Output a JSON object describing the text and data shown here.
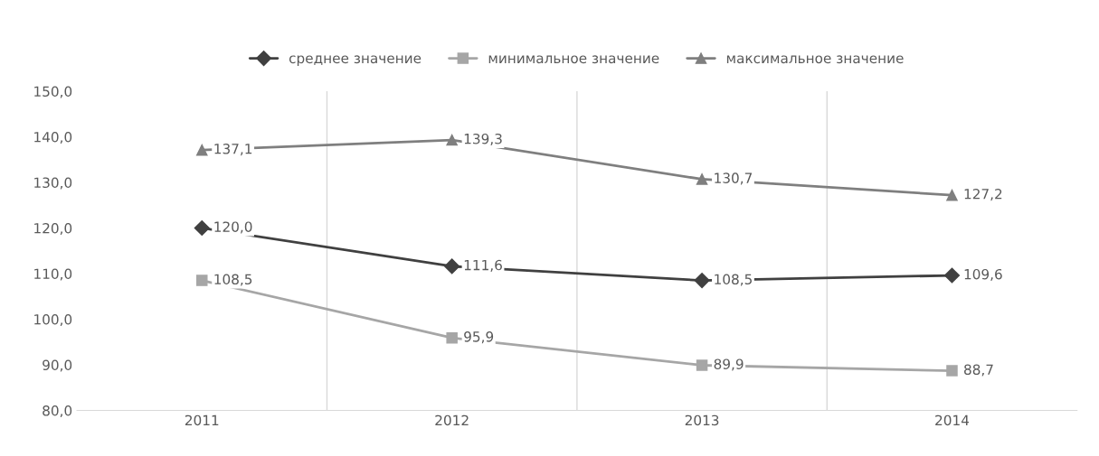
{
  "chart_data": {
    "type": "line",
    "categories": [
      "2011",
      "2012",
      "2013",
      "2014"
    ],
    "series": [
      {
        "name": "среднее значение",
        "color": "#404040",
        "marker": "diamond",
        "values": [
          120.0,
          111.6,
          108.5,
          109.6
        ],
        "value_labels": [
          "120,0",
          "111,6",
          "108,5",
          "109,6"
        ]
      },
      {
        "name": "минимальное значение",
        "color": "#a6a6a6",
        "marker": "square",
        "values": [
          108.5,
          95.9,
          89.9,
          88.7
        ],
        "value_labels": [
          "108,5",
          "95,9",
          "89,9",
          "88,7"
        ]
      },
      {
        "name": "максимальное значение",
        "color": "#7f7f7f",
        "marker": "triangle",
        "values": [
          137.1,
          139.3,
          130.7,
          127.2
        ],
        "value_labels": [
          "137,1",
          "139,3",
          "130,7",
          "127,2"
        ]
      }
    ],
    "ylim": [
      80,
      150
    ],
    "yticks": [
      {
        "value": 80,
        "label": "80,0"
      },
      {
        "value": 90,
        "label": "90,0"
      },
      {
        "value": 100,
        "label": "100,0"
      },
      {
        "value": 110,
        "label": "110,0"
      },
      {
        "value": 120,
        "label": "120,0"
      },
      {
        "value": 130,
        "label": "130,0"
      },
      {
        "value": 140,
        "label": "140,0"
      },
      {
        "value": 150,
        "label": "150,0"
      }
    ],
    "grid": "x",
    "legend": "top"
  }
}
